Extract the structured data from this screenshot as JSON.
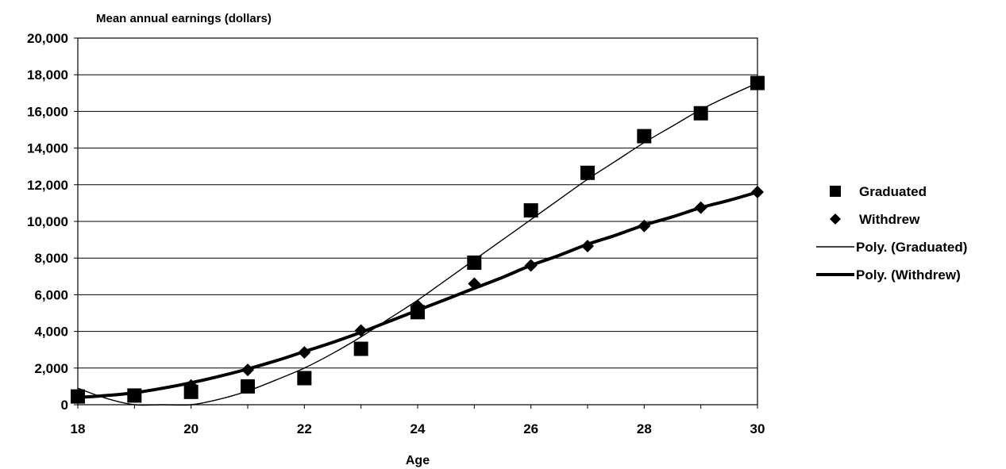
{
  "chart_data": {
    "type": "scatter",
    "title": "",
    "ylabel": "Mean annual earnings (dollars)",
    "xlabel": "Age",
    "xlim": [
      18,
      30
    ],
    "ylim": [
      0,
      20000
    ],
    "x_ticks": [
      18,
      20,
      22,
      24,
      26,
      28,
      30
    ],
    "x_tick_labels": [
      "18",
      "20",
      "22",
      "24",
      "26",
      "28",
      "30"
    ],
    "y_ticks": [
      0,
      2000,
      4000,
      6000,
      8000,
      10000,
      12000,
      14000,
      16000,
      18000,
      20000
    ],
    "y_tick_labels": [
      "0",
      "2,000",
      "4,000",
      "6,000",
      "8,000",
      "10,000",
      "12,000",
      "14,000",
      "16,000",
      "18,000",
      "20,000"
    ],
    "grid": "horizontal",
    "legend_position": "right",
    "x": [
      18,
      19,
      20,
      21,
      22,
      23,
      24,
      25,
      26,
      27,
      28,
      29,
      30
    ],
    "series": [
      {
        "name": "Graduated",
        "marker": "square",
        "values": [
          450,
          500,
          700,
          1000,
          1450,
          3050,
          5050,
          7750,
          10600,
          12650,
          14650,
          15900,
          17550
        ]
      },
      {
        "name": "Withdrew",
        "marker": "diamond",
        "values": [
          400,
          550,
          1050,
          1900,
          2850,
          4050,
          5400,
          6600,
          7600,
          8650,
          9750,
          10750,
          11600
        ]
      }
    ],
    "trendlines": [
      {
        "name": "Poly. (Graduated)",
        "line": "thin",
        "x": [
          18,
          18.5,
          19,
          19.5,
          20,
          20.5,
          21,
          21.5,
          22,
          22.5,
          23,
          23.5,
          24,
          24.5,
          25,
          25.5,
          26,
          26.5,
          27,
          27.5,
          28,
          28.5,
          29,
          29.5,
          30
        ],
        "values": [
          900,
          350,
          0,
          -150,
          0,
          300,
          750,
          1350,
          2000,
          2800,
          3700,
          4700,
          5700,
          6800,
          7900,
          9000,
          10100,
          11200,
          12300,
          13300,
          14300,
          15200,
          16100,
          16850,
          17550
        ]
      },
      {
        "name": "Poly. (Withdrew)",
        "line": "thick",
        "x": [
          18,
          18.5,
          19,
          19.5,
          20,
          20.5,
          21,
          21.5,
          22,
          22.5,
          23,
          23.5,
          24,
          24.5,
          25,
          25.5,
          26,
          26.5,
          27,
          27.5,
          28,
          28.5,
          29,
          29.5,
          30
        ],
        "values": [
          400,
          500,
          650,
          900,
          1200,
          1550,
          1950,
          2400,
          2900,
          3400,
          3950,
          4550,
          5150,
          5750,
          6350,
          6950,
          7600,
          8150,
          8750,
          9250,
          9800,
          10250,
          10750,
          11150,
          11600
        ]
      }
    ]
  }
}
